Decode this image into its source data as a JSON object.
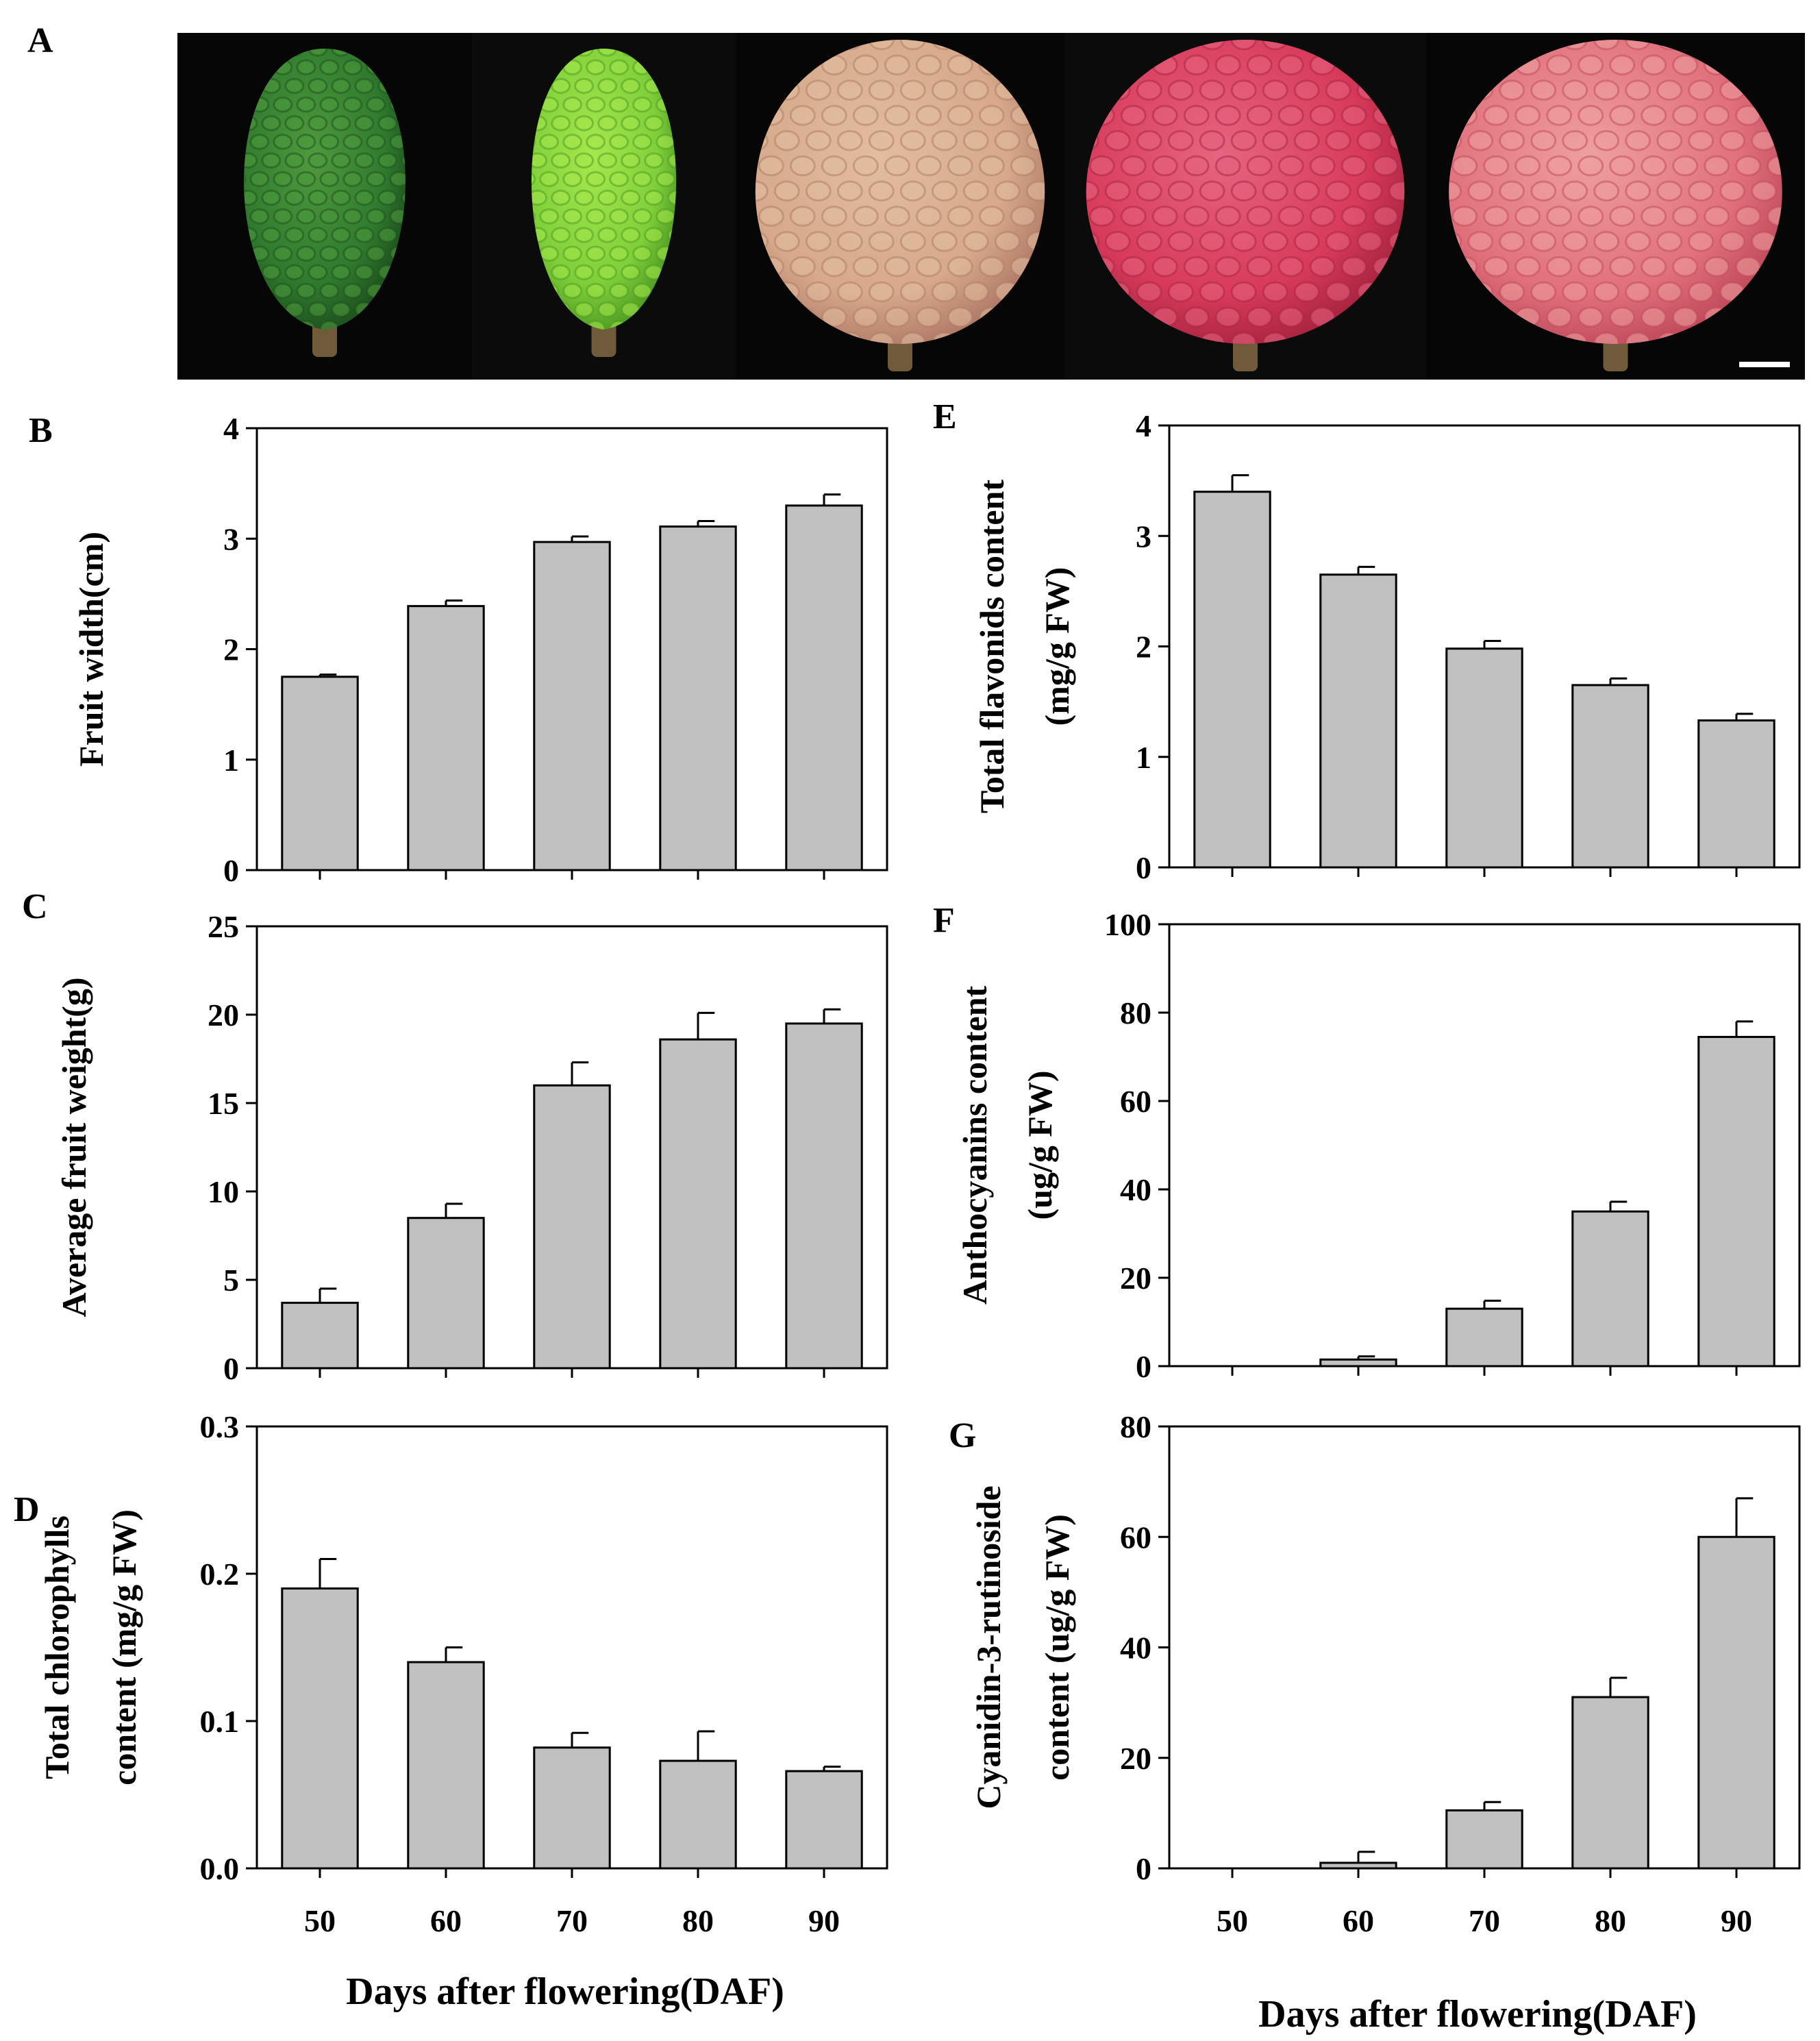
{
  "panel_a": {
    "label": "A",
    "photos": [
      {
        "name": "fruit-50-daf",
        "shape": "oval",
        "main": "#2f7a2e",
        "bump": "#4f9a3e",
        "rim": "#1d4f1c",
        "stem": "#6f5a3a"
      },
      {
        "name": "fruit-60-daf",
        "shape": "oval",
        "main": "#7fcf3a",
        "bump": "#a6e84d",
        "rim": "#4e9a22",
        "stem": "#6f5a3a"
      },
      {
        "name": "fruit-70-daf",
        "shape": "round",
        "main": "#d6a98a",
        "bump": "#e2bda0",
        "rim": "#b07a66",
        "stem": "#6f5a3a"
      },
      {
        "name": "fruit-80-daf",
        "shape": "round",
        "main": "#d83a5a",
        "bump": "#e66580",
        "rim": "#a82440",
        "stem": "#6f5a3a"
      },
      {
        "name": "fruit-90-daf",
        "shape": "round",
        "main": "#e0707c",
        "bump": "#eea0a0",
        "rim": "#c04a5a",
        "stem": "#6f5a3a"
      }
    ],
    "scale_bar_color": "#ffffff"
  },
  "styles": {
    "bar_fill": "#c0c0c0",
    "bar_stroke": "#000000",
    "axis_color": "#000000"
  },
  "chart_data": [
    {
      "id": "B",
      "panel_label": "B",
      "type": "bar",
      "categories": [
        "50",
        "60",
        "70",
        "80",
        "90"
      ],
      "values": [
        1.75,
        2.39,
        2.97,
        3.11,
        3.3
      ],
      "errors": [
        0.02,
        0.05,
        0.05,
        0.05,
        0.1
      ],
      "ylabel": "Fruit width(cm)",
      "ylabel2": "",
      "ylim": [
        0,
        4
      ],
      "yticks": [
        "0",
        "1",
        "2",
        "3",
        "4"
      ],
      "xlabel": "",
      "show_x_ticklabels": false
    },
    {
      "id": "C",
      "panel_label": "C",
      "type": "bar",
      "categories": [
        "50",
        "60",
        "70",
        "80",
        "90"
      ],
      "values": [
        3.7,
        8.5,
        16.0,
        18.6,
        19.5
      ],
      "errors": [
        0.8,
        0.8,
        1.3,
        1.5,
        0.8
      ],
      "ylabel": "Average fruit weight(g)",
      "ylabel2": "",
      "ylim": [
        0,
        25
      ],
      "yticks": [
        "0",
        "5",
        "10",
        "15",
        "20",
        "25"
      ],
      "xlabel": "",
      "show_x_ticklabels": false
    },
    {
      "id": "D",
      "panel_label": "D",
      "type": "bar",
      "categories": [
        "50",
        "60",
        "70",
        "80",
        "90"
      ],
      "values": [
        0.19,
        0.14,
        0.082,
        0.073,
        0.066
      ],
      "errors": [
        0.02,
        0.01,
        0.01,
        0.02,
        0.003
      ],
      "ylabel": "Total chlorophylls",
      "ylabel2": "content (mg/g FW)",
      "ylim": [
        0,
        0.3
      ],
      "yticks": [
        "0.0",
        "0.1",
        "0.2",
        "0.3"
      ],
      "xlabel": "Days after flowering(DAF)",
      "show_x_ticklabels": true
    },
    {
      "id": "E",
      "panel_label": "E",
      "type": "bar",
      "categories": [
        "50",
        "60",
        "70",
        "80",
        "90"
      ],
      "values": [
        3.4,
        2.65,
        1.98,
        1.65,
        1.33
      ],
      "errors": [
        0.15,
        0.07,
        0.07,
        0.06,
        0.06
      ],
      "ylabel": "Total flavonids content",
      "ylabel2": "(mg/g FW)",
      "ylim": [
        0,
        4
      ],
      "yticks": [
        "0",
        "1",
        "2",
        "3",
        "4"
      ],
      "xlabel": "",
      "show_x_ticklabels": false
    },
    {
      "id": "F",
      "panel_label": "F",
      "type": "bar",
      "categories": [
        "50",
        "60",
        "70",
        "80",
        "90"
      ],
      "values": [
        0,
        1.5,
        13,
        35,
        74.5
      ],
      "errors": [
        0,
        0.7,
        1.8,
        2.2,
        3.5
      ],
      "ylabel": "Anthocyanins content",
      "ylabel2": "(ug/g FW)",
      "ylim": [
        0,
        100
      ],
      "yticks": [
        "0",
        "20",
        "40",
        "60",
        "80",
        "100"
      ],
      "xlabel": "",
      "show_x_ticklabels": false
    },
    {
      "id": "G",
      "panel_label": "G",
      "type": "bar",
      "categories": [
        "50",
        "60",
        "70",
        "80",
        "90"
      ],
      "values": [
        0,
        1,
        10.5,
        31,
        60
      ],
      "errors": [
        0,
        2,
        1.5,
        3.5,
        7
      ],
      "ylabel": "Cyanidin-3-rutinoside",
      "ylabel2": "content (ug/g FW)",
      "ylim": [
        0,
        80
      ],
      "yticks": [
        "0",
        "20",
        "40",
        "60",
        "80"
      ],
      "xlabel": "Days after flowering(DAF)",
      "show_x_ticklabels": true
    }
  ]
}
